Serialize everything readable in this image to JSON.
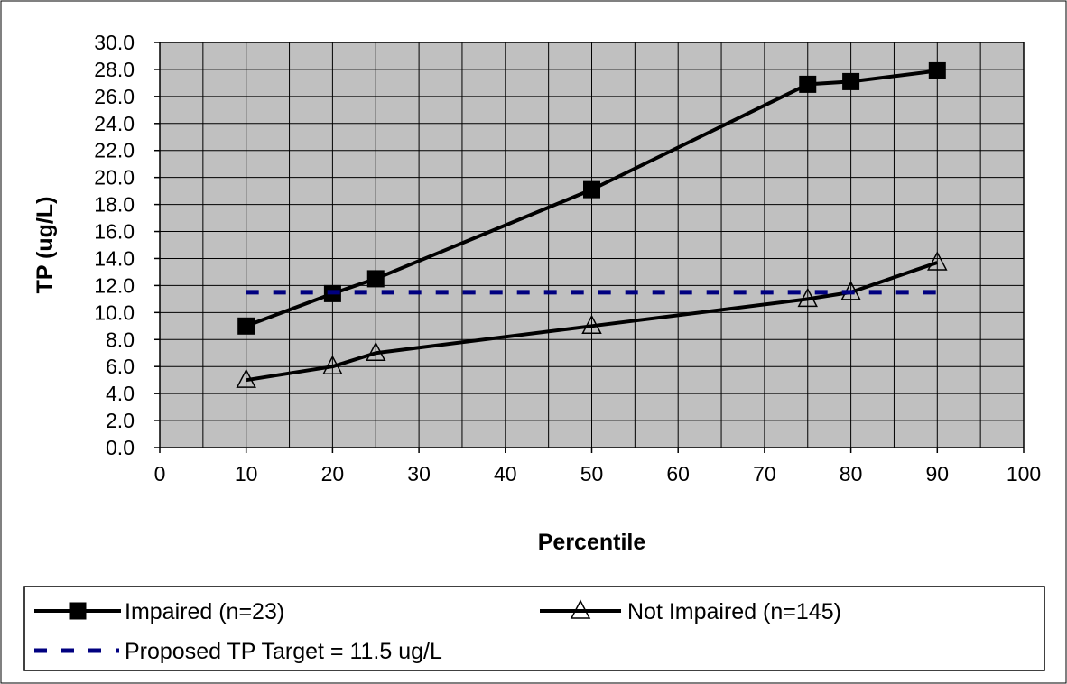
{
  "chart_data": {
    "type": "line",
    "title": "",
    "xlabel": "Percentile",
    "ylabel": "TP (ug/L)",
    "xlim": [
      0,
      100
    ],
    "ylim": [
      0,
      30
    ],
    "xticks": [
      "0",
      "10",
      "20",
      "30",
      "40",
      "50",
      "60",
      "70",
      "80",
      "90",
      "100"
    ],
    "yticks": [
      "0.0",
      "2.0",
      "4.0",
      "6.0",
      "8.0",
      "10.0",
      "12.0",
      "14.0",
      "16.0",
      "18.0",
      "20.0",
      "22.0",
      "24.0",
      "26.0",
      "28.0",
      "30.0"
    ],
    "grid": true,
    "legend_position": "bottom",
    "series": [
      {
        "name": "Impaired (n=23)",
        "marker": "square",
        "color": "#000000",
        "x": [
          10,
          20,
          25,
          50,
          75,
          80,
          90
        ],
        "y": [
          9.0,
          11.4,
          12.5,
          19.1,
          26.9,
          27.1,
          27.9
        ]
      },
      {
        "name": "Not Impaired (n=145)",
        "marker": "triangle",
        "color": "#000000",
        "x": [
          10,
          20,
          25,
          50,
          75,
          80,
          90
        ],
        "y": [
          5.0,
          6.0,
          7.0,
          9.0,
          11.0,
          11.5,
          13.7
        ]
      },
      {
        "name": "Proposed TP Target = 11.5 ug/L",
        "marker": "none",
        "style": "dashed",
        "color": "#000080",
        "x": [
          10,
          90
        ],
        "y": [
          11.5,
          11.5
        ]
      }
    ],
    "colors": {
      "plot_bg": "#c0c0c0",
      "grid": "#000000"
    }
  }
}
